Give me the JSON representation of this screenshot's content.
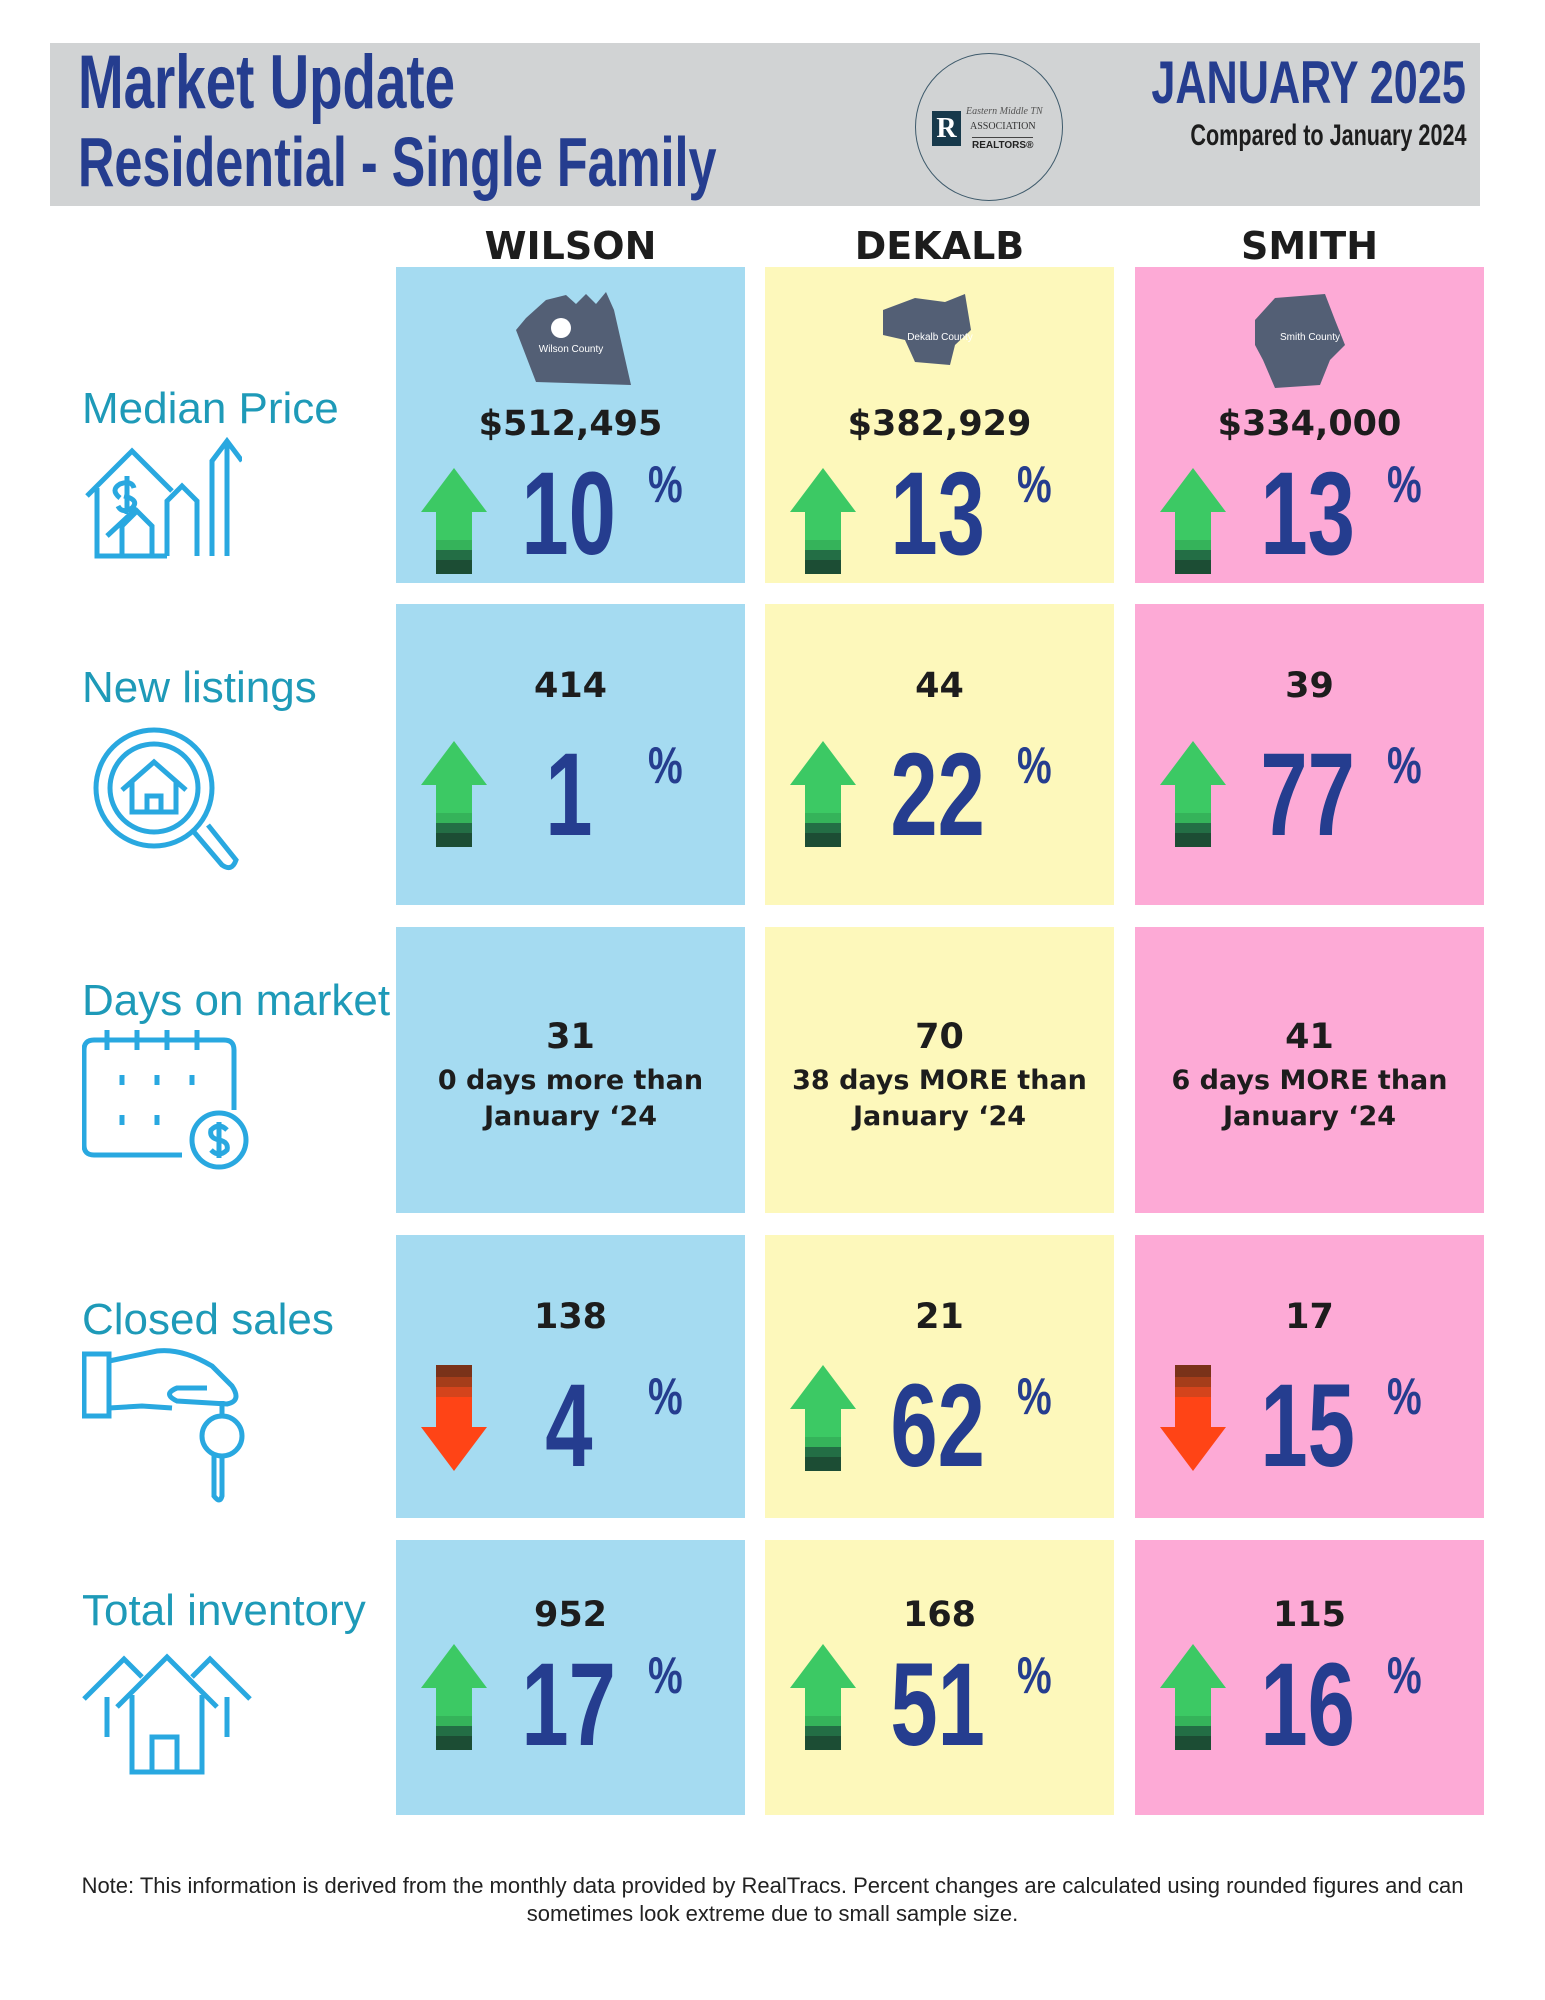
{
  "header": {
    "title": "Market Update",
    "subtitle": "Residential - Single Family",
    "month": "JANUARY 2025",
    "compared": "Compared to January 2024",
    "logo": {
      "line1": "Eastern Middle TN",
      "line2": "ASSOCIATION",
      "line3": "REALTORS®",
      "mark": "R"
    }
  },
  "counties": [
    {
      "name": "WILSON",
      "map_label": "Wilson County"
    },
    {
      "name": "DEKALB",
      "map_label": "Dekalb County"
    },
    {
      "name": "SMITH",
      "map_label": "Smith County"
    }
  ],
  "rows": [
    {
      "label": "Median Price",
      "icon": "house-price-growth-icon",
      "cells": [
        {
          "value": "$512,495",
          "direction": "up",
          "pct": "10",
          "pct_sign": "%"
        },
        {
          "value": "$382,929",
          "direction": "up",
          "pct": "13",
          "pct_sign": "%"
        },
        {
          "value": "$334,000",
          "direction": "up",
          "pct": "13",
          "pct_sign": "%"
        }
      ]
    },
    {
      "label": "New listings",
      "icon": "house-search-icon",
      "cells": [
        {
          "value": "414",
          "direction": "up",
          "pct": "1",
          "pct_sign": "%"
        },
        {
          "value": "44",
          "direction": "up",
          "pct": "22",
          "pct_sign": "%"
        },
        {
          "value": "39",
          "direction": "up",
          "pct": "77",
          "pct_sign": "%"
        }
      ]
    },
    {
      "label": "Days on market",
      "icon": "calendar-dollar-icon",
      "cells": [
        {
          "value": "31",
          "line1": "0 days more than",
          "line2": "January ‘24"
        },
        {
          "value": "70",
          "line1": "38 days MORE than",
          "line2": "January ‘24"
        },
        {
          "value": "41",
          "line1": "6 days MORE than",
          "line2": "January ‘24"
        }
      ]
    },
    {
      "label": "Closed sales",
      "icon": "hand-key-icon",
      "cells": [
        {
          "value": "138",
          "direction": "down",
          "pct": "4",
          "pct_sign": "%"
        },
        {
          "value": "21",
          "direction": "up",
          "pct": "62",
          "pct_sign": "%"
        },
        {
          "value": "17",
          "direction": "down",
          "pct": "15",
          "pct_sign": "%"
        }
      ]
    },
    {
      "label": "Total inventory",
      "icon": "houses-icon",
      "cells": [
        {
          "value": "952",
          "direction": "up",
          "pct": "17",
          "pct_sign": "%"
        },
        {
          "value": "168",
          "direction": "up",
          "pct": "51",
          "pct_sign": "%"
        },
        {
          "value": "115",
          "direction": "up",
          "pct": "16",
          "pct_sign": "%"
        }
      ]
    }
  ],
  "note": "Note: This information is derived from the monthly data provided by RealTracs. Percent changes are calculated using rounded figures and can sometimes look extreme due to small sample size.",
  "colors": {
    "navy": "#253d8f",
    "teal": "#1e9ab8",
    "wilson": "#a5dbf1",
    "dekalb": "#fdf8bb",
    "smith": "#fdaad6",
    "up": "#3cc964",
    "down": "#ff4416"
  }
}
